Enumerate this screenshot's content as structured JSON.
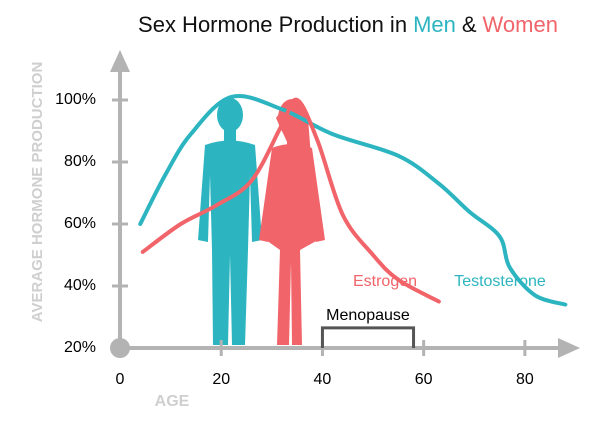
{
  "chart_data": {
    "type": "line",
    "title_parts": [
      "Sex Hormone Production in",
      "Men",
      "&",
      "Women"
    ],
    "title_colors": [
      "#111111",
      "#2cb5c0",
      "#111111",
      "#f0646a"
    ],
    "x_label": "AGE",
    "y_label": "AVERAGE HORMONE PRODUCTION",
    "xlim": [
      0,
      90
    ],
    "ylim": [
      20,
      110
    ],
    "xticks": [
      0,
      20,
      40,
      60,
      80
    ],
    "yticks": [
      {
        "value": 20,
        "label": "20%"
      },
      {
        "value": 40,
        "label": "40%"
      },
      {
        "value": 60,
        "label": "60%"
      },
      {
        "value": 80,
        "label": "80%"
      },
      {
        "value": 100,
        "label": "100%"
      }
    ],
    "series": [
      {
        "name": "Testosterone",
        "color": "#2cb5c0",
        "x": [
          4,
          9,
          14,
          22,
          32,
          42,
          55,
          63,
          69,
          75,
          77,
          82,
          88
        ],
        "values": [
          60,
          76,
          89,
          101,
          97,
          89,
          82,
          73,
          64,
          56,
          46,
          37,
          34
        ]
      },
      {
        "name": "Estrogen",
        "color": "#f0646a",
        "x": [
          4.5,
          12,
          19,
          26,
          32,
          35,
          39,
          44,
          50,
          55,
          63
        ],
        "values": [
          51,
          60,
          66,
          74,
          92,
          100,
          87,
          63,
          50,
          42,
          35
        ]
      }
    ],
    "annotations": [
      {
        "text": "Menopause",
        "x": [
          40,
          58
        ],
        "y": 26.5
      }
    ]
  }
}
